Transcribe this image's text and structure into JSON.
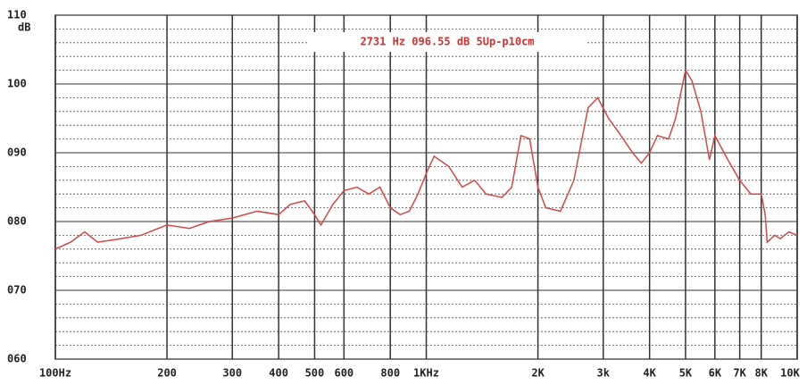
{
  "chart_data": {
    "type": "line",
    "annotation": "2731 Hz 096.55 dB 5Up-p10cm",
    "ylabel": "dB",
    "x_log": true,
    "grid": true,
    "xlim": [
      100,
      10000
    ],
    "ylim": [
      60,
      110
    ],
    "xticks": [
      {
        "value": 100,
        "label": "100Hz"
      },
      200,
      300,
      400,
      500,
      600,
      800,
      {
        "value": 1000,
        "label": "1KHz"
      },
      {
        "value": 2000,
        "label": "2K"
      },
      {
        "value": 3000,
        "label": "3k"
      },
      {
        "value": 4000,
        "label": "4K"
      },
      {
        "value": 5000,
        "label": "5K"
      },
      {
        "value": 6000,
        "label": "6K"
      },
      {
        "value": 7000,
        "label": "7K"
      },
      {
        "value": 8000,
        "label": "8K"
      },
      {
        "value": 10000,
        "label": "10K"
      }
    ],
    "yticks": [
      {
        "value": 60,
        "label": "060"
      },
      {
        "value": 70,
        "label": "070"
      },
      {
        "value": 80,
        "label": "080"
      },
      {
        "value": 90,
        "label": "090"
      },
      100,
      110
    ],
    "x": [
      100,
      110,
      120,
      130,
      150,
      170,
      200,
      230,
      260,
      300,
      350,
      400,
      430,
      470,
      500,
      520,
      560,
      600,
      650,
      700,
      750,
      800,
      850,
      900,
      950,
      1000,
      1050,
      1150,
      1250,
      1350,
      1450,
      1600,
      1700,
      1800,
      1900,
      2000,
      2100,
      2300,
      2500,
      2731,
      2900,
      3100,
      3300,
      3600,
      3800,
      4000,
      4200,
      4500,
      4700,
      5000,
      5200,
      5500,
      5800,
      6000,
      6500,
      7000,
      7500,
      8000,
      8200,
      8300,
      8700,
      9000,
      9500,
      10000
    ],
    "series": [
      {
        "color": "#d04848",
        "values": [
          76,
          77,
          78.5,
          77,
          77.5,
          78,
          79.5,
          79,
          80,
          80.5,
          81.5,
          81,
          82.5,
          83,
          81,
          79.5,
          82.5,
          84.5,
          85,
          84,
          85,
          82,
          81,
          81.5,
          84,
          87,
          89.5,
          88,
          85,
          86,
          84,
          83.5,
          85,
          92.5,
          92,
          85,
          82,
          81.5,
          86,
          96.55,
          98,
          95,
          93,
          90,
          88.5,
          90,
          92.5,
          92,
          95,
          102,
          100.5,
          96,
          89,
          92.5,
          89,
          86,
          84,
          84,
          81,
          77,
          78,
          77.5,
          78.5,
          78
        ]
      }
    ]
  }
}
